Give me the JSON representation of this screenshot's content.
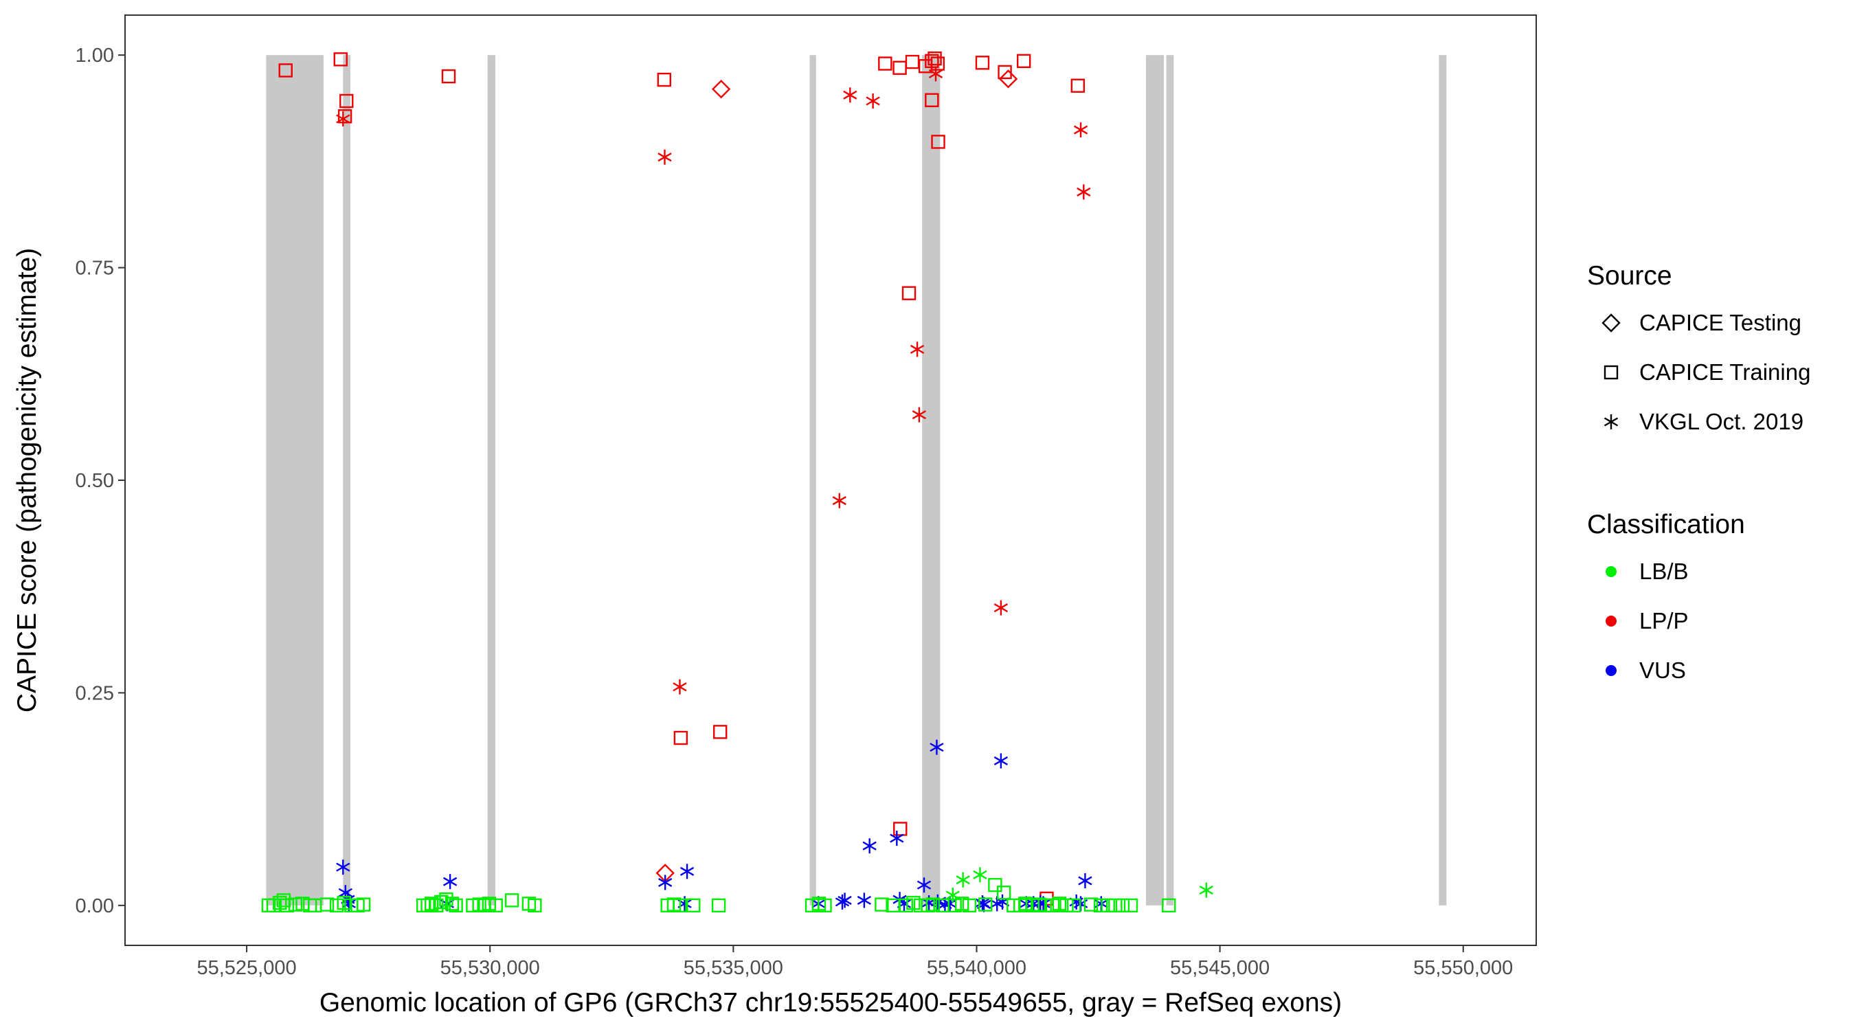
{
  "chart_data": {
    "type": "scatter",
    "title": "",
    "xlabel": "Genomic location of GP6 (GRCh37 chr19:55525400-55549655, gray = RefSeq exons)",
    "ylabel": "CAPICE score (pathogenicity estimate)",
    "xlim": [
      55522500,
      55551500
    ],
    "ylim": [
      -0.047,
      1.047
    ],
    "x_ticks": [
      55525000,
      55530000,
      55535000,
      55540000,
      55545000,
      55550000
    ],
    "x_tick_labels": [
      "55,525,000",
      "55,530,000",
      "55,535,000",
      "55,540,000",
      "55,545,000",
      "55,550,000"
    ],
    "y_ticks": [
      0,
      0.25,
      0.5,
      0.75,
      1
    ],
    "y_tick_labels": [
      "0.00",
      "0.25",
      "0.50",
      "0.75",
      "1.00"
    ],
    "grid": false,
    "legend_placement": "right",
    "exons": [
      [
        55525400,
        55526580
      ],
      [
        55526980,
        55527130
      ],
      [
        55529950,
        55530110
      ],
      [
        55536570,
        55536700
      ],
      [
        55538880,
        55539250
      ],
      [
        55543480,
        55543850
      ],
      [
        55543900,
        55544050
      ],
      [
        55549500,
        55549655
      ]
    ],
    "legend": {
      "source_title": "Source",
      "sources": [
        {
          "key": "testing",
          "label": "CAPICE Testing",
          "shape": "diamond"
        },
        {
          "key": "training",
          "label": "CAPICE Training",
          "shape": "square"
        },
        {
          "key": "vkgl",
          "label": "VKGL Oct. 2019",
          "shape": "asterisk"
        }
      ],
      "class_title": "Classification",
      "classes": [
        {
          "key": "LB/B",
          "label": "LB/B",
          "color": "#00ee00"
        },
        {
          "key": "LP/P",
          "label": "LP/P",
          "color": "#ee0000"
        },
        {
          "key": "VUS",
          "label": "VUS",
          "color": "#0000ee"
        }
      ]
    },
    "series": [
      {
        "source": "testing",
        "classification": "LP/P",
        "x": [
          55534750,
          55540650,
          55533600
        ],
        "y": [
          0.96,
          0.972,
          0.038
        ]
      },
      {
        "source": "training",
        "classification": "LP/P",
        "x": [
          55525800,
          55526930,
          55527050,
          55527020,
          55529150,
          55533580,
          55538120,
          55538420,
          55538680,
          55538950,
          55539080,
          55539140,
          55539200,
          55539080,
          55539210,
          55540120,
          55540580,
          55540970,
          55542080,
          55538610,
          55533920,
          55534730,
          55538430,
          55541440
        ],
        "y": [
          0.982,
          0.995,
          0.946,
          0.928,
          0.975,
          0.971,
          0.99,
          0.985,
          0.992,
          0.987,
          0.993,
          0.996,
          0.99,
          0.947,
          0.898,
          0.991,
          0.98,
          0.993,
          0.964,
          0.72,
          0.197,
          0.204,
          0.09,
          0.008
        ]
      },
      {
        "source": "vkgl",
        "classification": "LP/P",
        "x": [
          55526980,
          55533590,
          55537400,
          55537870,
          55539160,
          55542140,
          55542200,
          55538780,
          55538820,
          55537180,
          55540500,
          55533900
        ],
        "y": [
          0.925,
          0.88,
          0.953,
          0.946,
          0.978,
          0.912,
          0.839,
          0.654,
          0.577,
          0.476,
          0.35,
          0.257
        ]
      },
      {
        "source": "vkgl",
        "classification": "VUS",
        "x": [
          55526980,
          55527030,
          55527080,
          55527100,
          55529180,
          55529120,
          55533600,
          55534050,
          55534000,
          55536750,
          55537240,
          55537290,
          55537800,
          55537690,
          55538360,
          55538420,
          55538510,
          55538920,
          55539020,
          55539200,
          55539350,
          55539450,
          55540120,
          55540150,
          55540420,
          55540530,
          55540500,
          55541020,
          55541170,
          55541310,
          55541370,
          55542050,
          55542140,
          55542230,
          55542560,
          55539180
        ],
        "y": [
          0.045,
          0.015,
          0.007,
          0.002,
          0.028,
          0.002,
          0.027,
          0.04,
          0.002,
          0.002,
          0.004,
          0.006,
          0.07,
          0.006,
          0.079,
          0.007,
          0.002,
          0.024,
          0.003,
          0.004,
          0.001,
          0.002,
          0.003,
          0.001,
          0.002,
          0.004,
          0.17,
          0.002,
          0.002,
          0.003,
          0.002,
          0.004,
          0.002,
          0.029,
          0.002,
          0.186
        ]
      },
      {
        "source": "vkgl",
        "classification": "LB/B",
        "x": [
          55539720,
          55540070,
          55539510,
          55544720
        ],
        "y": [
          0.03,
          0.036,
          0.012,
          0.018
        ]
      },
      {
        "source": "training",
        "classification": "LB/B",
        "x": [
          55525450,
          55525550,
          55525680,
          55525760,
          55525830,
          55526000,
          55526150,
          55526300,
          55526400,
          55526650,
          55526850,
          55527000,
          55527150,
          55527280,
          55527400,
          55528630,
          55528720,
          55528800,
          55528900,
          55529000,
          55529100,
          55529220,
          55529300,
          55529650,
          55529780,
          55529880,
          55529980,
          55530120,
          55530450,
          55530800,
          55530920,
          55533650,
          55533780,
          55533900,
          55534180,
          55534700,
          55536620,
          55536760,
          55536880,
          55538050,
          55538280,
          55538550,
          55538700,
          55538850,
          55539000,
          55539100,
          55539300,
          55539550,
          55539700,
          55539850,
          55540180,
          55540380,
          55540560,
          55540760,
          55540900,
          55541000,
          55541150,
          55541280,
          55541400,
          55541560,
          55541700,
          55541850,
          55542000,
          55542350,
          55542550,
          55542700,
          55542850,
          55543000,
          55543170,
          55543950
        ],
        "y": [
          0.0,
          0.0,
          0.003,
          0.006,
          0.0,
          0.001,
          0.002,
          0.0,
          0.0,
          0.001,
          0.0,
          0.003,
          0.0,
          0.0,
          0.001,
          0.0,
          0.0,
          0.002,
          0.0,
          0.004,
          0.007,
          0.002,
          0.0,
          0.0,
          0.001,
          0.0,
          0.002,
          0.0,
          0.006,
          0.002,
          0.0,
          0.0,
          0.001,
          0.0,
          0.0,
          0.0,
          0.0,
          0.002,
          0.0,
          0.001,
          0.0,
          0.0,
          0.003,
          0.0,
          0.0,
          0.001,
          0.0,
          0.0,
          0.002,
          0.0,
          0.001,
          0.024,
          0.015,
          0.0,
          0.0,
          0.002,
          0.0,
          0.001,
          0.0,
          0.0,
          0.002,
          0.0,
          0.0,
          0.001,
          0.0,
          0.0,
          0.0,
          0.0,
          0.0,
          0.0
        ]
      }
    ]
  }
}
